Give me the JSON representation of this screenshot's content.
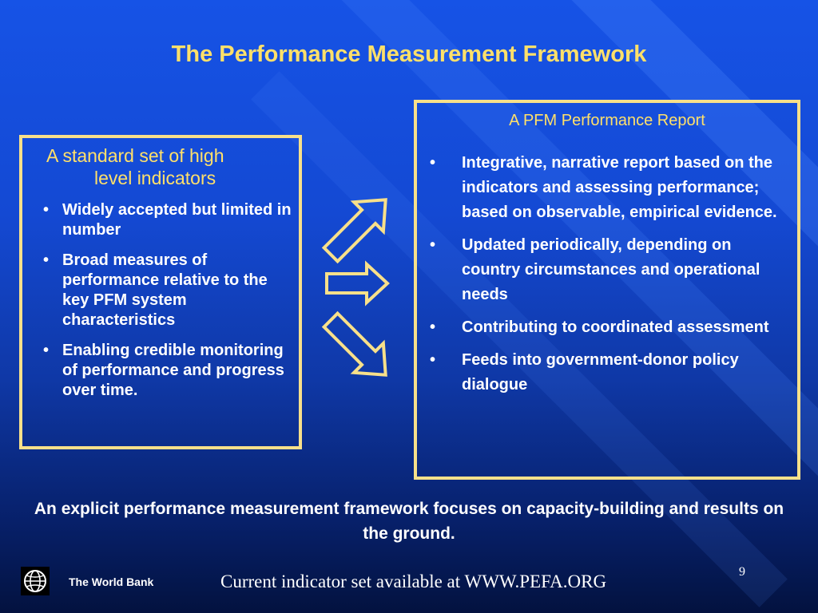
{
  "slide": {
    "title": "The Performance Measurement Framework",
    "left_box": {
      "heading_line1": "A standard set of high",
      "heading_line2": "level indicators",
      "bullets": [
        "Widely accepted but limited in number",
        "Broad measures of performance relative to the key PFM system characteristics",
        "Enabling credible monitoring of performance and progress over time."
      ]
    },
    "right_box": {
      "heading": "A PFM Performance Report",
      "bullets": [
        "Integrative, narrative report based on the indicators and assessing performance; based on observable, empirical evidence.",
        "Updated periodically, depending on country circumstances and operational needs",
        "Contributing to coordinated assessment",
        "Feeds into government-donor policy dialogue"
      ]
    },
    "conclusion": "An explicit performance measurement framework focuses on capacity-building and results on the ground.",
    "footer_brand": "The World Bank",
    "footer_note": "Current indicator set available at WWW.PEFA.ORG",
    "page_number": "9"
  },
  "colors": {
    "title": "#ffe06a",
    "border": "#f8e08a",
    "text": "#ffffff"
  },
  "icons": [
    "arrow-up-right-icon",
    "arrow-right-icon",
    "arrow-down-right-icon",
    "globe-icon"
  ]
}
